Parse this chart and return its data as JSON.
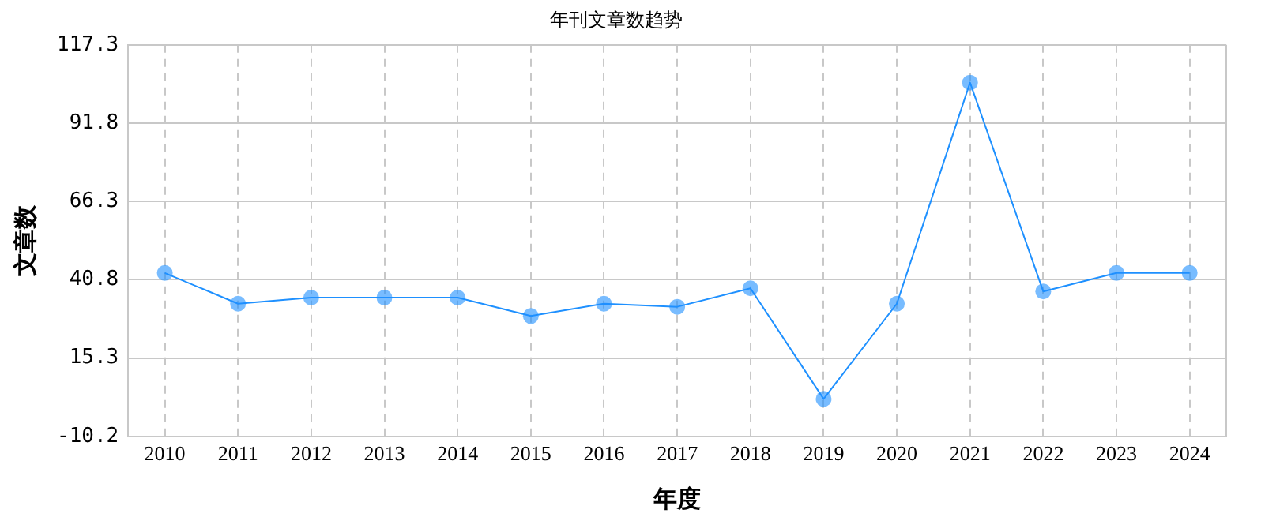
{
  "chart_data": {
    "type": "line",
    "title": "年刊文章数趋势",
    "xlabel": "年度",
    "ylabel": "文章数",
    "categories": [
      "2010",
      "2011",
      "2012",
      "2013",
      "2014",
      "2015",
      "2016",
      "2017",
      "2018",
      "2019",
      "2020",
      "2021",
      "2022",
      "2023",
      "2024"
    ],
    "series": [
      {
        "color": "#1e90ff",
        "values": [
          43,
          33,
          35,
          35,
          35,
          29,
          33,
          32,
          38,
          2,
          33,
          105,
          37,
          43,
          43
        ]
      }
    ],
    "ylim": [
      -10.2,
      117.3
    ],
    "yticks": [
      -10.2,
      15.3,
      40.8,
      66.3,
      91.8,
      117.3
    ],
    "grid": true,
    "legend": false,
    "marker": "circle",
    "line_style": "solid"
  }
}
